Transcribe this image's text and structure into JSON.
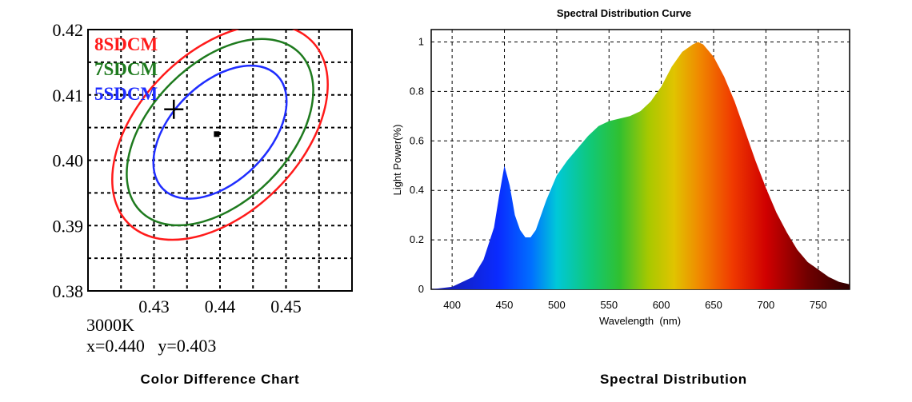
{
  "chart_data": [
    {
      "type": "line",
      "caption": "Color Difference Chart",
      "title": "",
      "xlabel": "",
      "ylabel": "",
      "xlim": [
        0.42,
        0.46
      ],
      "ylim": [
        0.38,
        0.42
      ],
      "x_ticks": [
        "0.43",
        "0.44",
        "0.45"
      ],
      "y_ticks": [
        "0.42",
        "0.41",
        "0.40",
        "0.39",
        "0.38"
      ],
      "x_tick_values": [
        0.43,
        0.44,
        0.45
      ],
      "y_tick_values": [
        0.42,
        0.41,
        0.4,
        0.39,
        0.38
      ],
      "grid": true,
      "series": [
        {
          "name": "8SDCM",
          "color": "#ff1a1a",
          "center": [
            0.44,
            0.4043
          ],
          "semi_major": 0.0196,
          "semi_minor": 0.0122,
          "angle_deg": 45
        },
        {
          "name": "7SDCM",
          "color": "#1e7a1e",
          "center": [
            0.44,
            0.4043
          ],
          "semi_major": 0.017,
          "semi_minor": 0.0105,
          "angle_deg": 45
        },
        {
          "name": "5SDCM",
          "color": "#1f2dff",
          "center": [
            0.44,
            0.4043
          ],
          "semi_major": 0.0122,
          "semi_minor": 0.0074,
          "angle_deg": 45
        }
      ],
      "center_marker": [
        0.4395,
        0.404
      ],
      "cross_marker": [
        0.433,
        0.4078
      ],
      "info": {
        "cct": "3000K",
        "coords": "x=0.440   y=0.403"
      }
    },
    {
      "type": "area",
      "caption": "Spectral Distribution",
      "title": "Spectral Distribution Curve",
      "xlabel": "Wavelength  (nm)",
      "ylabel": "Light Power(%)",
      "xlim": [
        380,
        780
      ],
      "ylim": [
        0,
        1.05
      ],
      "x_ticks": [
        400,
        450,
        500,
        550,
        600,
        650,
        700,
        750
      ],
      "y_ticks": [
        0,
        0.2,
        0.4,
        0.6,
        0.8,
        1
      ],
      "grid": true,
      "x": [
        380,
        400,
        420,
        430,
        440,
        445,
        450,
        455,
        460,
        465,
        470,
        475,
        480,
        490,
        500,
        510,
        520,
        530,
        540,
        550,
        560,
        570,
        580,
        590,
        600,
        610,
        620,
        630,
        635,
        640,
        650,
        660,
        670,
        680,
        690,
        700,
        710,
        720,
        730,
        740,
        750,
        760,
        770,
        780
      ],
      "y": [
        0.0,
        0.01,
        0.05,
        0.12,
        0.25,
        0.38,
        0.5,
        0.42,
        0.3,
        0.24,
        0.21,
        0.21,
        0.24,
        0.36,
        0.46,
        0.52,
        0.57,
        0.62,
        0.66,
        0.68,
        0.69,
        0.7,
        0.72,
        0.76,
        0.82,
        0.9,
        0.96,
        0.99,
        1.0,
        0.99,
        0.94,
        0.86,
        0.76,
        0.64,
        0.52,
        0.41,
        0.31,
        0.23,
        0.16,
        0.11,
        0.08,
        0.05,
        0.03,
        0.02
      ]
    }
  ]
}
